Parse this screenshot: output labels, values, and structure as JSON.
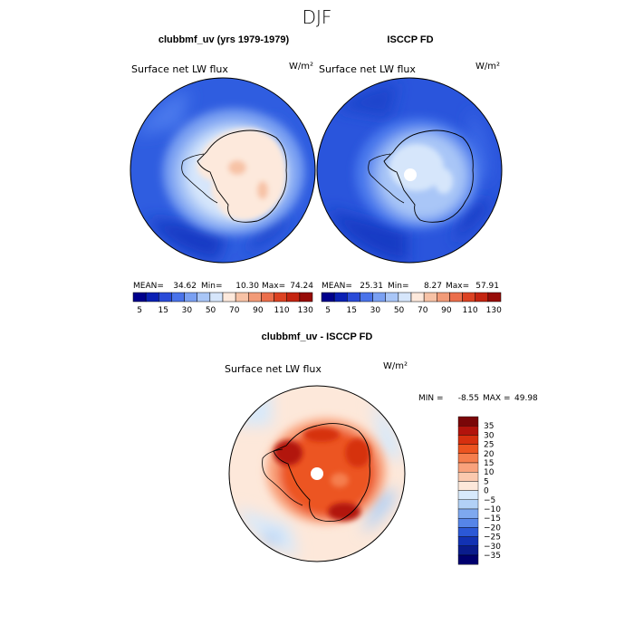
{
  "title": "DJF",
  "chart_data": [
    {
      "type": "heatmap",
      "projection": "south-polar-stereographic",
      "panel_title": "clubbmf_uv (yrs 1979-1979)",
      "variable_label": "Surface net LW flux",
      "units": "W/m²",
      "stats": {
        "mean_label": "MEAN=",
        "mean": "34.62",
        "min_label": "Min=",
        "min": "10.30",
        "max_label": "Max=",
        "max": "74.24"
      },
      "colorbar_ticks": [
        "5",
        "15",
        "30",
        "50",
        "70",
        "90",
        "110",
        "130"
      ],
      "levels": [
        5,
        10,
        15,
        20,
        30,
        40,
        50,
        60,
        70,
        80,
        90,
        100,
        110,
        120,
        130
      ]
    },
    {
      "type": "heatmap",
      "projection": "south-polar-stereographic",
      "panel_title": "ISCCP FD",
      "variable_label": "Surface net LW flux",
      "units": "W/m²",
      "stats": {
        "mean_label": "MEAN=",
        "mean": "25.31",
        "min_label": "Min=",
        "min": "8.27",
        "max_label": "Max=",
        "max": "57.91"
      },
      "colorbar_ticks": [
        "5",
        "15",
        "30",
        "50",
        "70",
        "90",
        "110",
        "130"
      ],
      "levels": [
        5,
        10,
        15,
        20,
        30,
        40,
        50,
        60,
        70,
        80,
        90,
        100,
        110,
        120,
        130
      ]
    },
    {
      "type": "heatmap",
      "projection": "south-polar-stereographic",
      "panel_title": "clubbmf_uv - ISCCP FD",
      "variable_label": "Surface net LW flux",
      "units": "W/m²",
      "stats": {
        "min_label": "MIN =",
        "min": "-8.55",
        "max_label": "MAX =",
        "max": "49.98"
      },
      "colorbar_ticks": [
        "35",
        "30",
        "25",
        "20",
        "15",
        "10",
        "5",
        "0",
        "−5",
        "−10",
        "−15",
        "−20",
        "−25",
        "−30",
        "−35"
      ]
    }
  ],
  "colors": {
    "abs_scale": [
      "#00008c",
      "#0a20b4",
      "#2a4bd8",
      "#4a73ea",
      "#7aa0f2",
      "#a9c6f7",
      "#d6e6fb",
      "#fde9dc",
      "#f7c2a6",
      "#f29b78",
      "#eb6e4b",
      "#dc4222",
      "#c42410",
      "#970c08"
    ],
    "diff_scale": [
      "#7a0608",
      "#b2130c",
      "#d6300f",
      "#ec5420",
      "#f57e4d",
      "#f9a27c",
      "#fbc9ae",
      "#fde8da",
      "#d7e9fb",
      "#b2d1f6",
      "#7ea8ef",
      "#5685e8",
      "#2b58d6",
      "#1232b3",
      "#0a1c8c",
      "#00006e"
    ]
  }
}
